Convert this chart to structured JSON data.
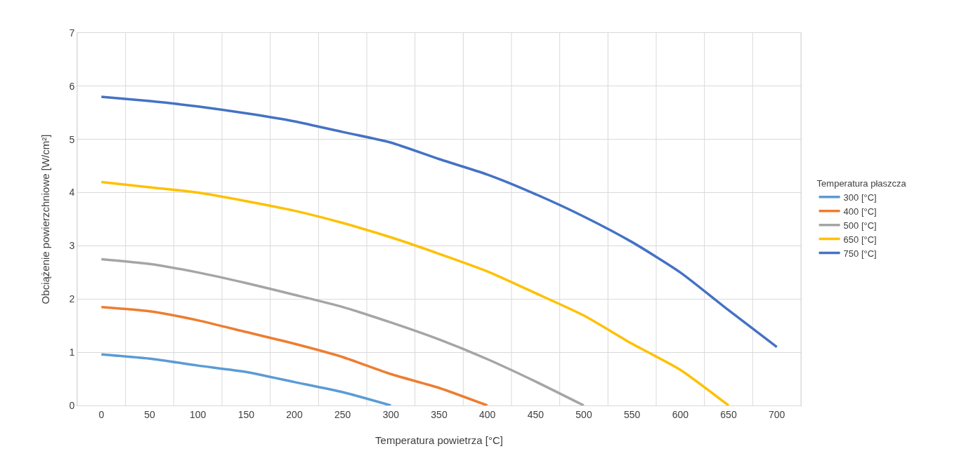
{
  "chart_data": {
    "type": "line",
    "xlabel": "Temperatura powietrza [°C]",
    "ylabel": "Obciążenie powierzchniowe [W/cm²]",
    "legend_title": "Temperatura płaszcza",
    "legend": "right",
    "grid": true,
    "marker": "none",
    "line_style": "solid",
    "x": [
      0,
      50,
      100,
      150,
      200,
      250,
      300,
      350,
      400,
      450,
      500,
      550,
      600,
      650,
      700
    ],
    "xlim": [
      -25,
      725
    ],
    "xticks": [
      {
        "value": -25,
        "label": null
      },
      0,
      {
        "value": 25,
        "label": null
      },
      50,
      {
        "value": 75,
        "label": null
      },
      100,
      {
        "value": 125,
        "label": null
      },
      150,
      {
        "value": 175,
        "label": null
      },
      200,
      {
        "value": 225,
        "label": null
      },
      250,
      {
        "value": 275,
        "label": null
      },
      300,
      {
        "value": 325,
        "label": null
      },
      350,
      {
        "value": 375,
        "label": null
      },
      400,
      {
        "value": 425,
        "label": null
      },
      450,
      {
        "value": 475,
        "label": null
      },
      500,
      {
        "value": 525,
        "label": null
      },
      550,
      {
        "value": 575,
        "label": null
      },
      600,
      {
        "value": 625,
        "label": null
      },
      650,
      {
        "value": 675,
        "label": null
      },
      700,
      {
        "value": 725,
        "label": null
      }
    ],
    "ylim": [
      0,
      7
    ],
    "yticks": [
      0,
      1,
      2,
      3,
      4,
      5,
      6,
      7
    ],
    "series": [
      {
        "name": "300 [°C]",
        "color": "#5b9bd5",
        "values": [
          0.96,
          0.88,
          0.75,
          0.63,
          0.44,
          0.25,
          0,
          null,
          null,
          null,
          null,
          null,
          null,
          null,
          null
        ]
      },
      {
        "name": "400 [°C]",
        "color": "#ed7d31",
        "values": [
          1.85,
          1.77,
          1.6,
          1.38,
          1.16,
          0.91,
          0.59,
          0.33,
          0,
          null,
          null,
          null,
          null,
          null,
          null
        ]
      },
      {
        "name": "500 [°C]",
        "color": "#a5a5a5",
        "values": [
          2.75,
          2.66,
          2.5,
          2.3,
          2.08,
          1.85,
          1.56,
          1.24,
          0.87,
          0.45,
          0,
          null,
          null,
          null,
          null
        ]
      },
      {
        "name": "650 [°C]",
        "color": "#ffc000",
        "values": [
          4.2,
          4.1,
          4.0,
          3.84,
          3.66,
          3.43,
          3.16,
          2.85,
          2.52,
          2.11,
          1.69,
          1.16,
          0.67,
          0,
          null
        ]
      },
      {
        "name": "750 [°C]",
        "color": "#4472c4",
        "values": [
          5.8,
          5.72,
          5.62,
          5.49,
          5.34,
          5.14,
          4.94,
          4.63,
          4.34,
          3.97,
          3.55,
          3.07,
          2.5,
          1.79,
          1.1
        ]
      }
    ]
  }
}
